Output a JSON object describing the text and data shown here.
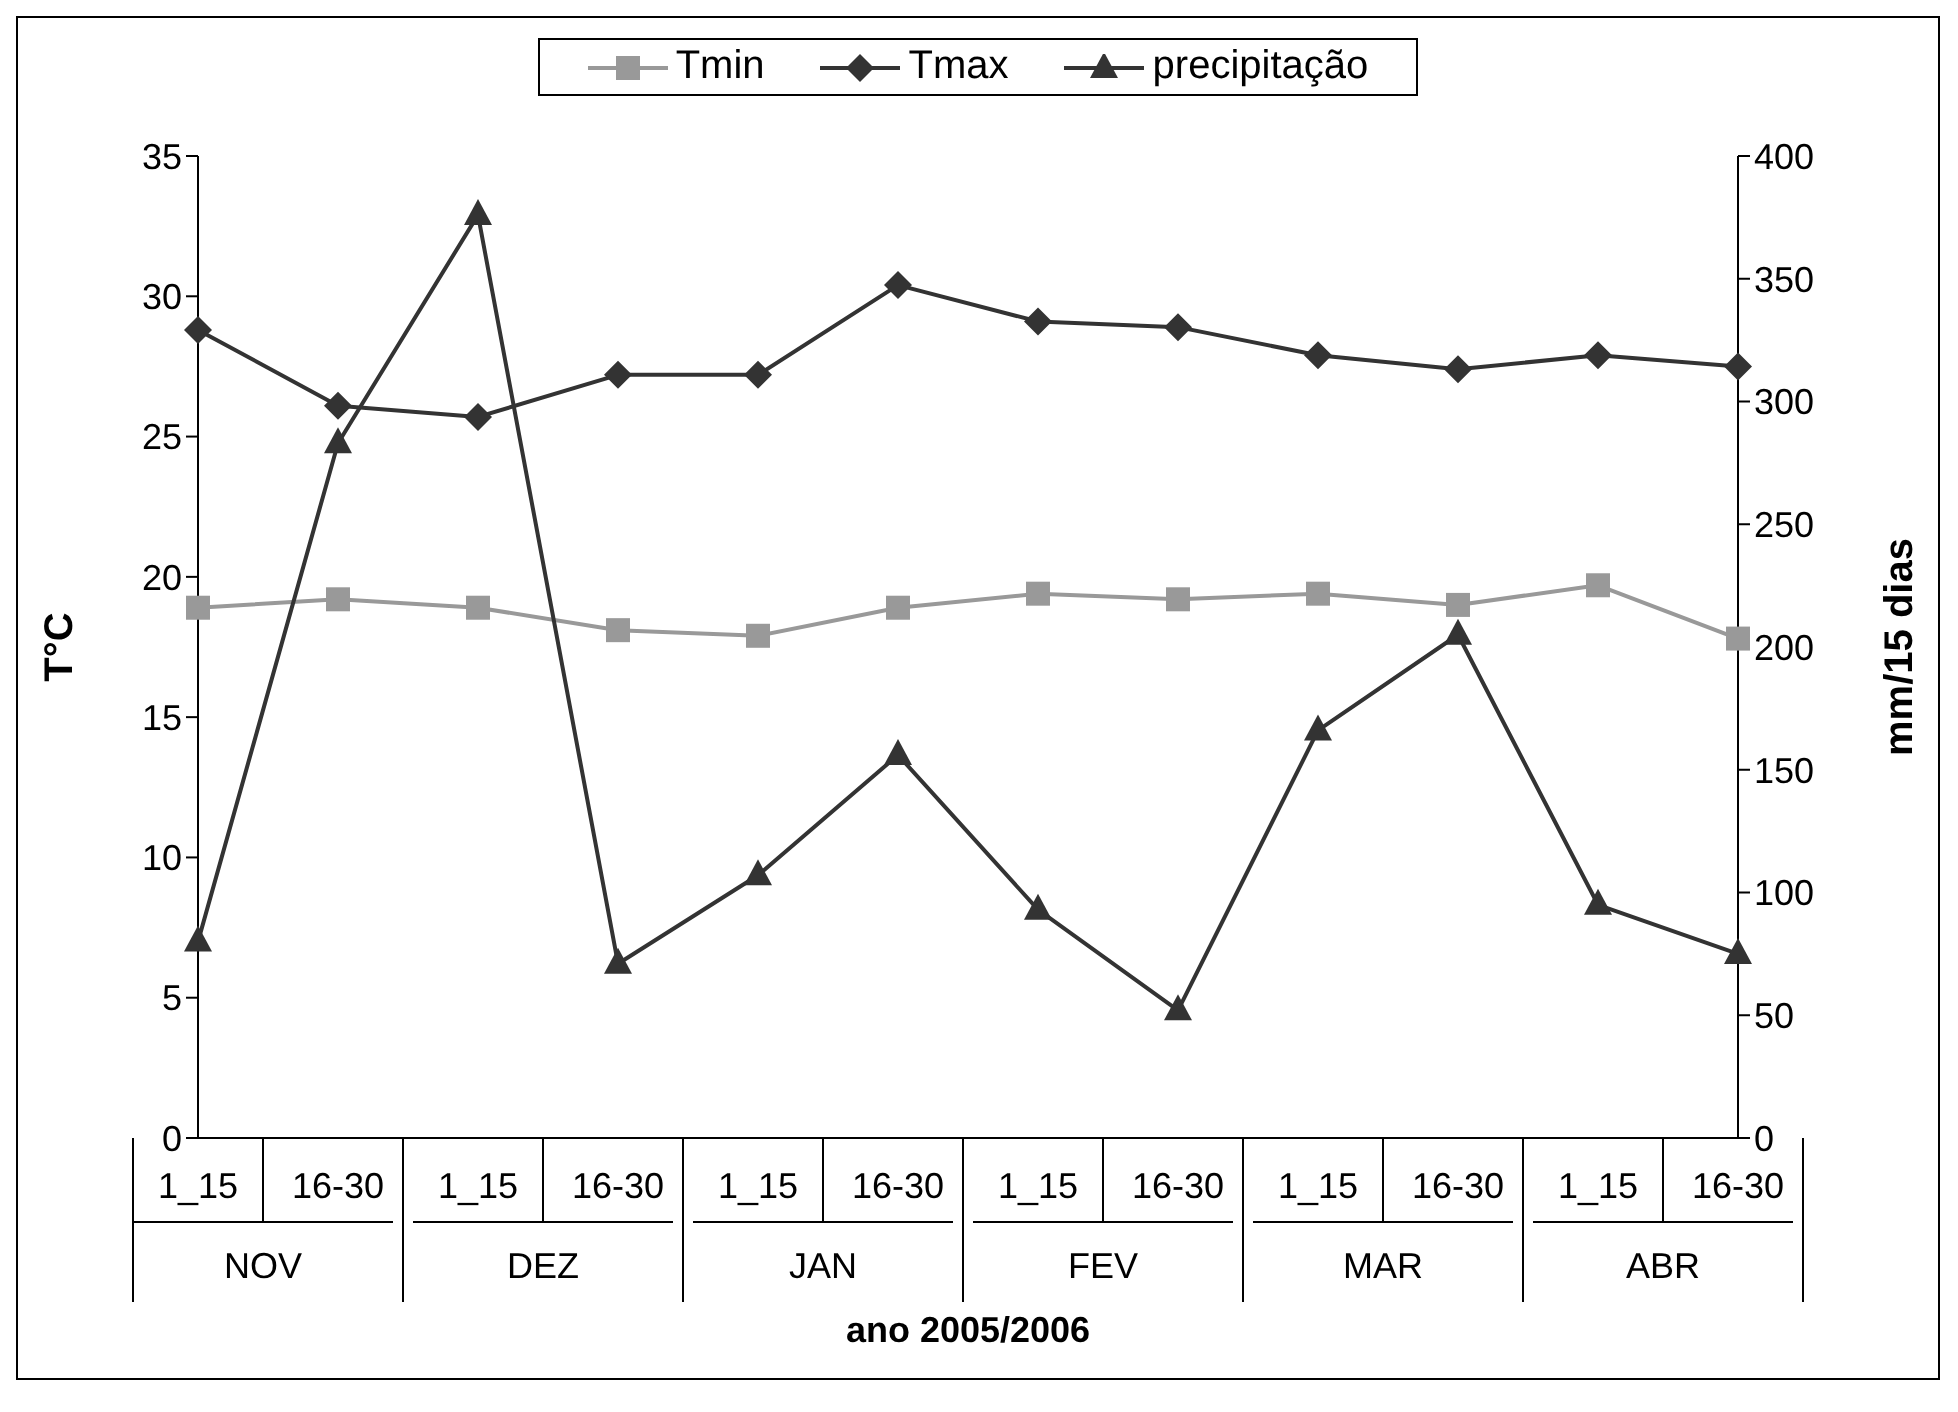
{
  "chart_data": {
    "type": "line",
    "xlabel": "ano 2005/2006",
    "ylabel": "T°C",
    "y2label": "mm/15 dias",
    "categories": [
      "1_15",
      "16-30",
      "1_15",
      "16-30",
      "1_15",
      "16-30",
      "1_15",
      "16-30",
      "1_15",
      "16-30",
      "1_15",
      "16-30"
    ],
    "annotations": [
      "NOV",
      "DEZ",
      "JAN",
      "FEV",
      "MAR",
      "ABR"
    ],
    "series": [
      {
        "name": "Tmin",
        "color": "#999999",
        "marker": "square",
        "values": [
          18.9,
          19.2,
          18.9,
          18.1,
          17.9,
          18.9,
          19.4,
          19.2,
          19.4,
          19.0,
          19.7,
          17.8
        ]
      },
      {
        "name": "Tmax",
        "color": "#333333",
        "marker": "diamond",
        "values": [
          28.8,
          26.1,
          25.7,
          27.2,
          27.2,
          30.4,
          29.1,
          28.9,
          27.9,
          27.4,
          27.9,
          27.5
        ]
      },
      {
        "name": "precipitação",
        "color": "#333333",
        "marker": "triangle",
        "axis": "y2",
        "values": [
          80,
          283,
          376,
          71,
          107,
          156,
          93,
          52,
          166,
          205,
          95,
          75
        ]
      }
    ],
    "ylim": [
      0,
      35
    ],
    "yticks": [
      0,
      5,
      10,
      15,
      20,
      25,
      30,
      35
    ],
    "y2lim": [
      0,
      400
    ],
    "y2ticks": [
      0,
      50,
      100,
      150,
      200,
      250,
      300,
      350,
      400
    ],
    "grid": false,
    "legend": "top"
  }
}
